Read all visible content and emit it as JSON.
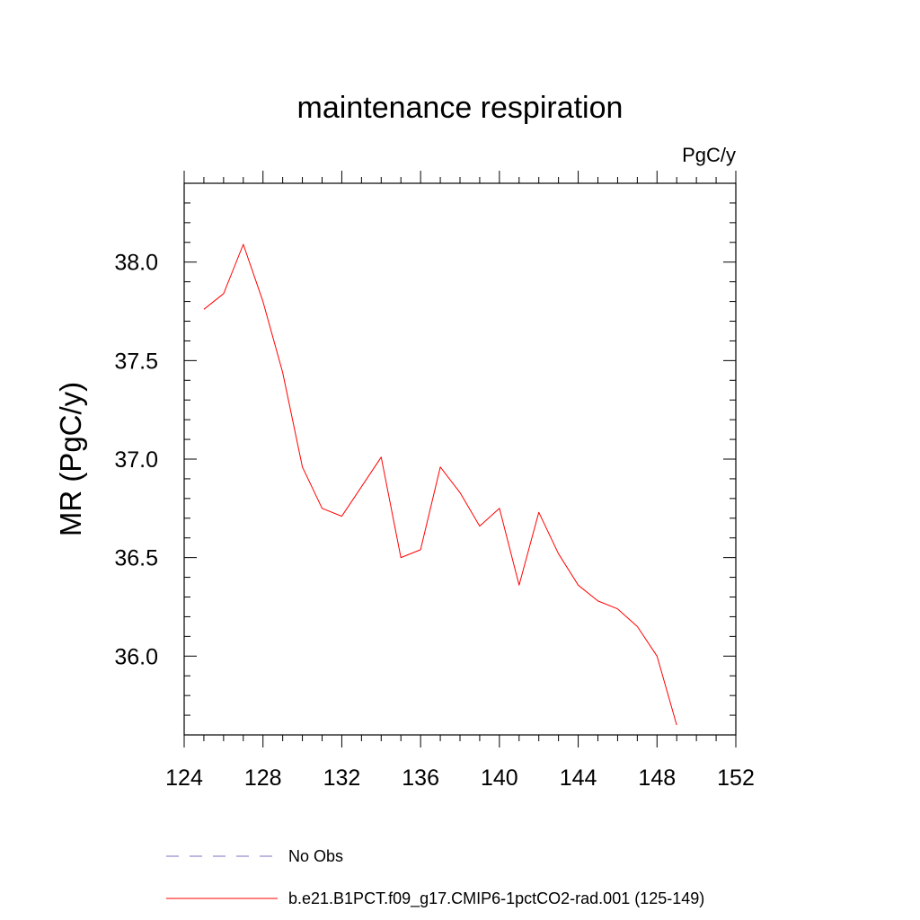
{
  "chart_data": {
    "type": "line",
    "title": "maintenance respiration",
    "units_label": "PgC/y",
    "xlabel": "",
    "ylabel": "MR  (PgC/y)",
    "xlim": [
      124,
      152
    ],
    "ylim": [
      35.6,
      38.4
    ],
    "x_ticks": [
      124,
      128,
      132,
      136,
      140,
      144,
      148,
      152
    ],
    "y_ticks": [
      36.0,
      36.5,
      37.0,
      37.5,
      38.0
    ],
    "x_tick_labels": [
      "124",
      "128",
      "132",
      "136",
      "140",
      "144",
      "148",
      "152"
    ],
    "y_tick_labels": [
      "36.0",
      "36.5",
      "37.0",
      "37.5",
      "38.0"
    ],
    "grid": false,
    "legend_position": "bottom",
    "series": [
      {
        "name": "No Obs",
        "color": "#7b6fc4",
        "dash": "dashed",
        "x": [],
        "y": []
      },
      {
        "name": "b.e21.B1PCT.f09_g17.CMIP6-1pctCO2-rad.001 (125-149)",
        "color": "#ff0000",
        "dash": "solid",
        "x": [
          125,
          126,
          127,
          128,
          129,
          130,
          131,
          132,
          133,
          134,
          135,
          136,
          137,
          138,
          139,
          140,
          141,
          142,
          143,
          144,
          145,
          146,
          147,
          148,
          149
        ],
        "y": [
          37.76,
          37.84,
          38.09,
          37.8,
          37.44,
          36.96,
          36.75,
          36.71,
          36.86,
          37.01,
          36.5,
          36.54,
          36.96,
          36.83,
          36.66,
          36.75,
          36.36,
          36.73,
          36.52,
          36.36,
          36.28,
          36.24,
          36.15,
          36.0,
          35.65
        ]
      }
    ]
  }
}
